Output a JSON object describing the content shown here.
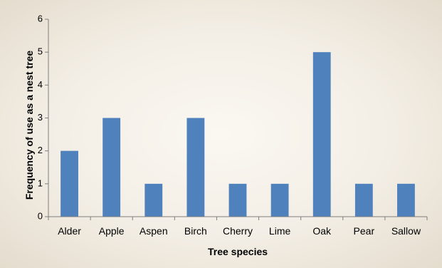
{
  "chart_data": {
    "type": "bar",
    "title": "",
    "xlabel": "Tree species",
    "ylabel": "Frequency of use as a nest tree",
    "categories": [
      "Alder",
      "Apple",
      "Aspen",
      "Birch",
      "Cherry",
      "Lime",
      "Oak",
      "Pear",
      "Sallow"
    ],
    "values": [
      2,
      3,
      1,
      3,
      1,
      1,
      5,
      1,
      1
    ],
    "ylim": [
      0,
      6
    ],
    "yticks": [
      "0",
      "1",
      "2",
      "3",
      "4",
      "5",
      "6"
    ],
    "grid": false,
    "legend": "none",
    "bar_color": "#4f81bd"
  }
}
